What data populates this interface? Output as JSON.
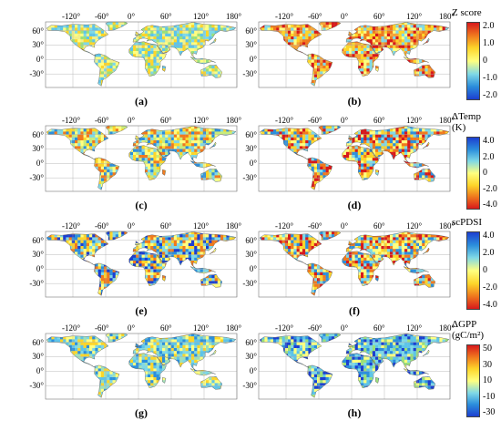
{
  "axes": {
    "lon_ticks": [
      "-120°",
      "-60°",
      "0°",
      "60°",
      "120°",
      "180°"
    ],
    "lat_ticks": [
      "60°",
      "30°",
      "0°",
      "-30°"
    ]
  },
  "panels": [
    {
      "label": "(a)",
      "legend": "zscore"
    },
    {
      "label": "(b)",
      "legend": "zscore"
    },
    {
      "label": "(c)",
      "legend": "temp"
    },
    {
      "label": "(d)",
      "legend": "temp"
    },
    {
      "label": "(e)",
      "legend": "scpdsi"
    },
    {
      "label": "(f)",
      "legend": "scpdsi"
    },
    {
      "label": "(g)",
      "legend": "gpp"
    },
    {
      "label": "(h)",
      "legend": "gpp"
    }
  ],
  "colorbars": [
    {
      "key": "zscore",
      "title": [
        "Z score"
      ],
      "ticks": [
        "2.0",
        "1.0",
        "0",
        "-1.0",
        "-2.0"
      ],
      "colors": [
        "#d7191c",
        "#f07a1e",
        "#fdd52a",
        "#ffff80",
        "#7fd8e6",
        "#2c8fdc",
        "#1c3fd0"
      ]
    },
    {
      "key": "temp",
      "title": [
        "ΔTemp",
        "(K)"
      ],
      "ticks": [
        "4.0",
        "2.0",
        "0",
        "-2.0",
        "-4.0"
      ],
      "colors": [
        "#1c3fd0",
        "#2c8fdc",
        "#7fd8e6",
        "#ffff80",
        "#fdd52a",
        "#f07a1e",
        "#d7191c"
      ]
    },
    {
      "key": "scpdsi",
      "title": [
        "scPDSI"
      ],
      "ticks": [
        "4.0",
        "2.0",
        "0",
        "-2.0",
        "-4.0"
      ],
      "colors": [
        "#1c3fd0",
        "#2c8fdc",
        "#7fd8e6",
        "#ffff80",
        "#fdd52a",
        "#f07a1e",
        "#d7191c"
      ]
    },
    {
      "key": "gpp",
      "title": [
        "ΔGPP",
        "(gC/m²)"
      ],
      "ticks": [
        "50",
        "30",
        "10",
        "-10",
        "-30"
      ],
      "colors": [
        "#d7191c",
        "#f07a1e",
        "#fdd52a",
        "#ffff80",
        "#7fd8e6",
        "#2c8fdc",
        "#1c3fd0"
      ]
    }
  ]
}
